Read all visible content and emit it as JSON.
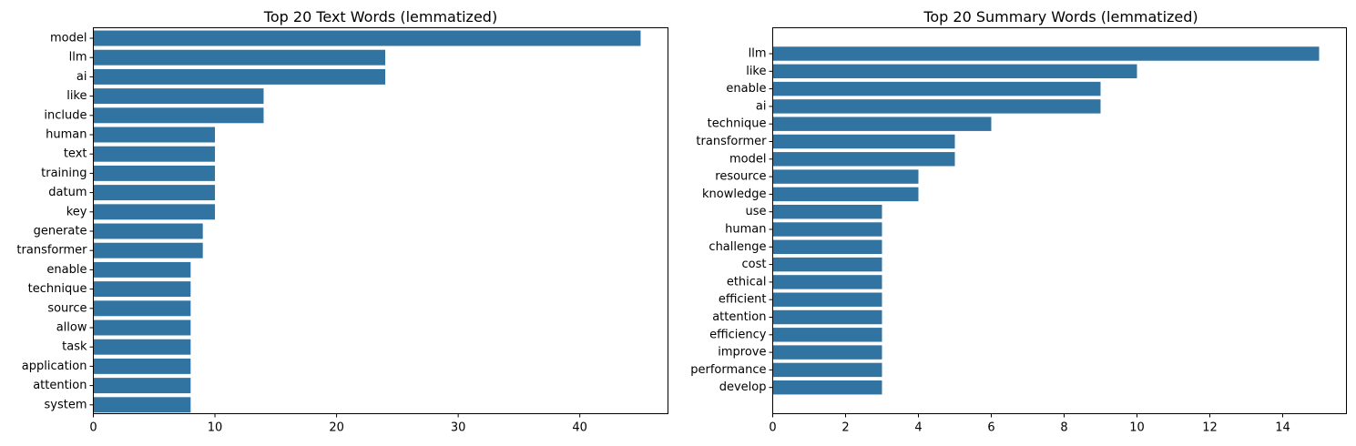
{
  "chart_data": [
    {
      "type": "bar",
      "orientation": "horizontal",
      "title": "Top 20 Text Words (lemmatized)",
      "xlabel": "",
      "ylabel": "",
      "xlim": [
        0,
        47.25
      ],
      "xticks": [
        0,
        10,
        20,
        30,
        40
      ],
      "grid": false,
      "color": "#3274a1",
      "categories": [
        "model",
        "llm",
        "ai",
        "like",
        "include",
        "human",
        "text",
        "training",
        "datum",
        "key",
        "generate",
        "transformer",
        "enable",
        "technique",
        "source",
        "allow",
        "task",
        "application",
        "attention",
        "system"
      ],
      "values": [
        45,
        24,
        24,
        14,
        14,
        10,
        10,
        10,
        10,
        10,
        9,
        9,
        8,
        8,
        8,
        8,
        8,
        8,
        8,
        8
      ]
    },
    {
      "type": "bar",
      "orientation": "horizontal",
      "title": "Top 20 Summary Words (lemmatized)",
      "xlabel": "",
      "ylabel": "",
      "xlim": [
        0,
        15.75
      ],
      "xticks": [
        0,
        2,
        4,
        6,
        8,
        10,
        12,
        14
      ],
      "grid": false,
      "color": "#3274a1",
      "categories": [
        "llm",
        "like",
        "enable",
        "ai",
        "technique",
        "transformer",
        "model",
        "resource",
        "knowledge",
        "use",
        "human",
        "challenge",
        "cost",
        "ethical",
        "efficient",
        "attention",
        "efficiency",
        "improve",
        "performance",
        "develop"
      ],
      "values": [
        15,
        10,
        9,
        9,
        6,
        5,
        5,
        4,
        4,
        3,
        3,
        3,
        3,
        3,
        3,
        3,
        3,
        3,
        3,
        3
      ]
    }
  ]
}
